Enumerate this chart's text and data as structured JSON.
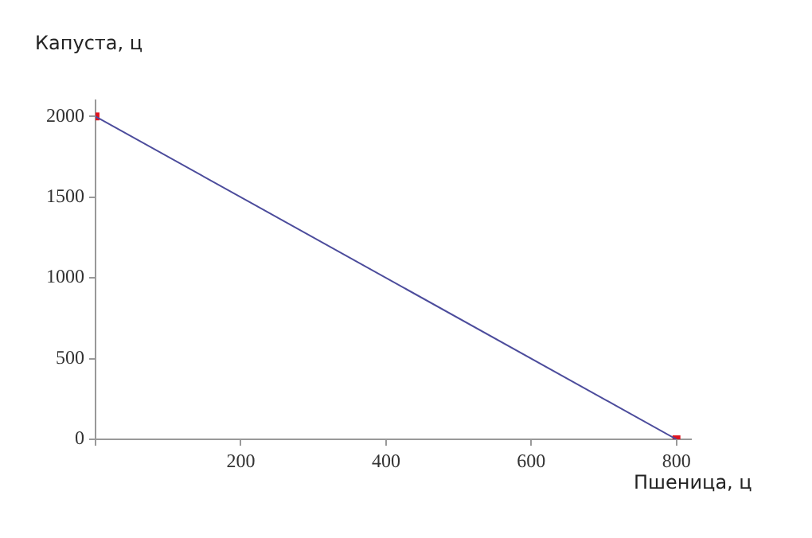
{
  "chart_data": {
    "type": "line",
    "xlabel": "Пшеница, ц",
    "ylabel": "Капуста, ц",
    "x": [
      0,
      800
    ],
    "series": [
      {
        "color": "#4c4c9c",
        "values": [
          2000,
          0
        ],
        "marker": "none"
      },
      {
        "type": "scatter",
        "color": "#e0141e",
        "values": [
          2000,
          0
        ],
        "marker": "square"
      }
    ],
    "xlim": [
      0,
      820
    ],
    "xticks": [
      {
        "value": 0,
        "label": null
      },
      200,
      400,
      600,
      800
    ],
    "ylim": [
      0,
      2100
    ],
    "yticks": [
      0,
      500,
      1000,
      1500,
      2000
    ],
    "grid": false,
    "legend": false
  }
}
